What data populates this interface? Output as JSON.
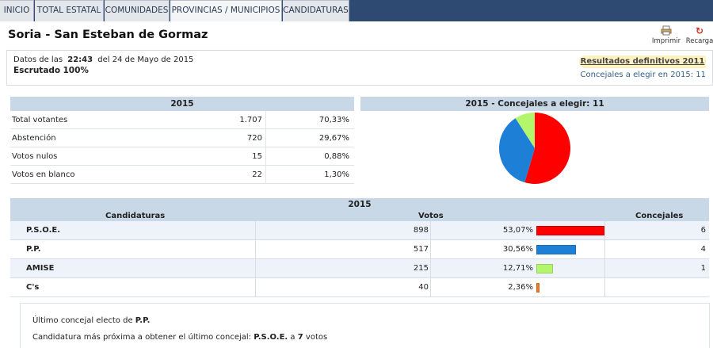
{
  "nav": {
    "tabs": [
      {
        "label": "INICIO"
      },
      {
        "label": "TOTAL ESTATAL"
      },
      {
        "label": "COMUNIDADES"
      },
      {
        "label": "PROVINCIAS / MUNICIPIOS"
      },
      {
        "label": "CANDIDATURAS"
      }
    ]
  },
  "header": {
    "title": "Soria - San Esteban de Gormaz",
    "print_label": "Imprimir",
    "reload_label": "Recarga"
  },
  "info": {
    "datos_prefix": "Datos de las",
    "time": "22:43",
    "date_text": "del 24 de Mayo de 2015",
    "escrutado_label": "Escrutado",
    "escrutado_value": "100%",
    "badge": "Resultados definitivos 2011",
    "concejales_line": "Concejales a elegir en 2015: 11"
  },
  "participation": {
    "header": "2015",
    "rows": [
      {
        "label": "Total votantes",
        "count": "1.707",
        "pct": "70,33%"
      },
      {
        "label": "Abstención",
        "count": "720",
        "pct": "29,67%"
      },
      {
        "label": "Votos nulos",
        "count": "15",
        "pct": "0,88%"
      },
      {
        "label": "Votos en blanco",
        "count": "22",
        "pct": "1,30%"
      }
    ]
  },
  "pie": {
    "header": "2015 - Concejales a elegir: 11",
    "slices": [
      {
        "party": "P.S.O.E.",
        "seats": 6,
        "color": "#ff0000"
      },
      {
        "party": "P.P.",
        "seats": 4,
        "color": "#1e7fd6"
      },
      {
        "party": "AMISE",
        "seats": 1,
        "color": "#b3f56b"
      }
    ]
  },
  "results": {
    "header": "2015",
    "col_candidaturas": "Candidaturas",
    "col_votos": "Votos",
    "col_concejales": "Concejales",
    "rows": [
      {
        "name": "P.S.O.E.",
        "votes": "898",
        "pct": "53,07%",
        "pct_value": 53.07,
        "seats": "6",
        "color": "#ff0000"
      },
      {
        "name": "P.P.",
        "votes": "517",
        "pct": "30,56%",
        "pct_value": 30.56,
        "seats": "4",
        "color": "#1e7fd6"
      },
      {
        "name": "AMISE",
        "votes": "215",
        "pct": "12,71%",
        "pct_value": 12.71,
        "seats": "1",
        "color": "#b3f56b"
      },
      {
        "name": "C's",
        "votes": "40",
        "pct": "2,36%",
        "pct_value": 2.36,
        "seats": "",
        "color": "#f07a2a"
      }
    ]
  },
  "footer": {
    "last_prefix": "Último concejal electo de",
    "last_party": "P.P.",
    "next_prefix": "Candidatura más próxima a obtener el último concejal:",
    "next_party": "P.S.O.E.",
    "next_mid": "a",
    "next_votes": "7",
    "next_suffix": "votos"
  }
}
